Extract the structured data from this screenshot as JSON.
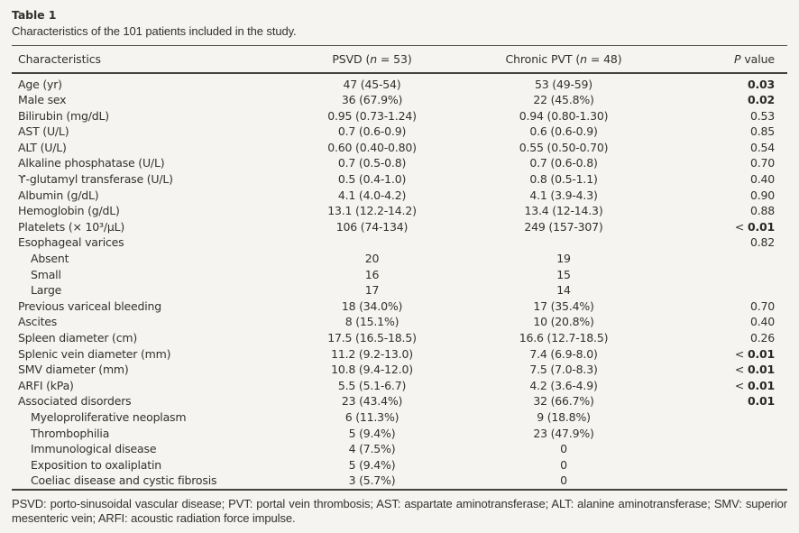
{
  "page": {
    "background_color": "#f5f4f1",
    "text_color": "#34312c",
    "rule_color": "#46433e"
  },
  "title": "Table 1",
  "caption": "Characteristics of the 101 patients included in the study.",
  "header": {
    "col1": "Characteristics",
    "col2_pre": "PSVD (",
    "col2_n": "n",
    "col2_post": " = 53)",
    "col3_pre": "Chronic PVT (",
    "col3_n": "n",
    "col3_post": " = 48)",
    "col4_italic": "P",
    "col4_rest": " value"
  },
  "lt_symbol": "< ",
  "rows": [
    {
      "label": "Age (yr)",
      "indent": false,
      "psvd": "47 (45-54)",
      "pvt": "53 (49-59)",
      "p": "0.03",
      "p_bold": true,
      "p_lt": false
    },
    {
      "label": "Male sex",
      "indent": false,
      "psvd": "36 (67.9%)",
      "pvt": "22 (45.8%)",
      "p": "0.02",
      "p_bold": true,
      "p_lt": false
    },
    {
      "label": "Bilirubin (mg/dL)",
      "indent": false,
      "psvd": "0.95 (0.73-1.24)",
      "pvt": "0.94 (0.80-1.30)",
      "p": "0.53",
      "p_bold": false,
      "p_lt": false
    },
    {
      "label": "AST (U/L)",
      "indent": false,
      "psvd": "0.7 (0.6-0.9)",
      "pvt": "0.6 (0.6-0.9)",
      "p": "0.85",
      "p_bold": false,
      "p_lt": false
    },
    {
      "label": "ALT (U/L)",
      "indent": false,
      "psvd": "0.60 (0.40-0.80)",
      "pvt": "0.55 (0.50-0.70)",
      "p": "0.54",
      "p_bold": false,
      "p_lt": false
    },
    {
      "label": "Alkaline phosphatase (U/L)",
      "indent": false,
      "psvd": "0.7 (0.5-0.8)",
      "pvt": "0.7 (0.6-0.8)",
      "p": "0.70",
      "p_bold": false,
      "p_lt": false
    },
    {
      "label": "ϒ-glutamyl transferase (U/L)",
      "indent": false,
      "psvd": "0.5 (0.4-1.0)",
      "pvt": "0.8 (0.5-1.1)",
      "p": "0.40",
      "p_bold": false,
      "p_lt": false
    },
    {
      "label": "Albumin (g/dL)",
      "indent": false,
      "psvd": "4.1 (4.0-4.2)",
      "pvt": "4.1 (3.9-4.3)",
      "p": "0.90",
      "p_bold": false,
      "p_lt": false
    },
    {
      "label": "Hemoglobin (g/dL)",
      "indent": false,
      "psvd": "13.1 (12.2-14.2)",
      "pvt": "13.4 (12-14.3)",
      "p": "0.88",
      "p_bold": false,
      "p_lt": false
    },
    {
      "label": "Platelets (× 10³/μL)",
      "indent": false,
      "psvd": "106 (74-134)",
      "pvt": "249 (157-307)",
      "p": "0.01",
      "p_bold": true,
      "p_lt": true
    },
    {
      "label": "Esophageal varices",
      "indent": false,
      "psvd": "",
      "pvt": "",
      "p": "0.82",
      "p_bold": false,
      "p_lt": false
    },
    {
      "label": "Absent",
      "indent": true,
      "psvd": "20",
      "pvt": "19",
      "p": "",
      "p_bold": false,
      "p_lt": false
    },
    {
      "label": "Small",
      "indent": true,
      "psvd": "16",
      "pvt": "15",
      "p": "",
      "p_bold": false,
      "p_lt": false
    },
    {
      "label": "Large",
      "indent": true,
      "psvd": "17",
      "pvt": "14",
      "p": "",
      "p_bold": false,
      "p_lt": false
    },
    {
      "label": "Previous variceal bleeding",
      "indent": false,
      "psvd": "18 (34.0%)",
      "pvt": "17 (35.4%)",
      "p": "0.70",
      "p_bold": false,
      "p_lt": false
    },
    {
      "label": "Ascites",
      "indent": false,
      "psvd": "8 (15.1%)",
      "pvt": "10 (20.8%)",
      "p": "0.40",
      "p_bold": false,
      "p_lt": false
    },
    {
      "label": "Spleen diameter (cm)",
      "indent": false,
      "psvd": "17.5 (16.5-18.5)",
      "pvt": "16.6 (12.7-18.5)",
      "p": "0.26",
      "p_bold": false,
      "p_lt": false
    },
    {
      "label": "Splenic vein diameter (mm)",
      "indent": false,
      "psvd": "11.2 (9.2-13.0)",
      "pvt": "7.4 (6.9-8.0)",
      "p": "0.01",
      "p_bold": true,
      "p_lt": true
    },
    {
      "label": "SMV diameter (mm)",
      "indent": false,
      "psvd": "10.8 (9.4-12.0)",
      "pvt": "7.5 (7.0-8.3)",
      "p": "0.01",
      "p_bold": true,
      "p_lt": true
    },
    {
      "label": "ARFI (kPa)",
      "indent": false,
      "psvd": "5.5 (5.1-6.7)",
      "pvt": "4.2 (3.6-4.9)",
      "p": "0.01",
      "p_bold": true,
      "p_lt": true
    },
    {
      "label": "Associated disorders",
      "indent": false,
      "psvd": "23 (43.4%)",
      "pvt": "32 (66.7%)",
      "p": "0.01",
      "p_bold": true,
      "p_lt": false
    },
    {
      "label": "Myeloproliferative neoplasm",
      "indent": true,
      "psvd": "6 (11.3%)",
      "pvt": "9 (18.8%)",
      "p": "",
      "p_bold": false,
      "p_lt": false
    },
    {
      "label": "Thrombophilia",
      "indent": true,
      "psvd": "5 (9.4%)",
      "pvt": "23 (47.9%)",
      "p": "",
      "p_bold": false,
      "p_lt": false
    },
    {
      "label": "Immunological disease",
      "indent": true,
      "psvd": "4 (7.5%)",
      "pvt": "0",
      "p": "",
      "p_bold": false,
      "p_lt": false
    },
    {
      "label": "Exposition to oxaliplatin",
      "indent": true,
      "psvd": "5 (9.4%)",
      "pvt": "0",
      "p": "",
      "p_bold": false,
      "p_lt": false
    },
    {
      "label": "Coeliac disease and cystic fibrosis",
      "indent": true,
      "psvd": "3 (5.7%)",
      "pvt": "0",
      "p": "",
      "p_bold": false,
      "p_lt": false
    }
  ],
  "footnote": "PSVD: porto-sinusoidal vascular disease; PVT: portal vein thrombosis; AST: aspartate aminotransferase; ALT: alanine aminotransferase; SMV: superior mesenteric vein; ARFI: acoustic radiation force impulse."
}
